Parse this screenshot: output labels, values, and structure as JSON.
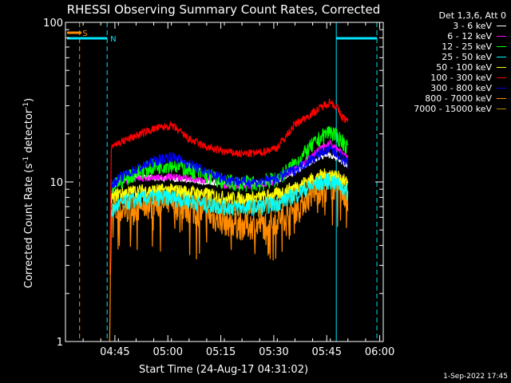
{
  "chart_data": {
    "type": "line",
    "title": "RHESSI Observing Summary Count Rates, Corrected",
    "xlabel": "Start Time (24-Aug-17 04:31:02)",
    "ylabel_main": "Corrected Count Rate (s",
    "ylabel_sup1": "-1",
    "ylabel_mid": " detector",
    "ylabel_sup2": "-1",
    "ylabel_end": ")",
    "yscale": "log",
    "ylim": [
      1,
      100
    ],
    "x_range_minutes": [
      0,
      90
    ],
    "x_ticks": [
      {
        "minute": 14,
        "label": "04:45"
      },
      {
        "minute": 29,
        "label": "05:00"
      },
      {
        "minute": 44,
        "label": "05:15"
      },
      {
        "minute": 59,
        "label": "05:30"
      },
      {
        "minute": 74,
        "label": "05:45"
      },
      {
        "minute": 89,
        "label": "06:00"
      }
    ],
    "y_ticks": [
      {
        "value": 1,
        "label": "1"
      },
      {
        "value": 10,
        "label": "10"
      },
      {
        "value": 100,
        "label": "100"
      }
    ],
    "legend_title": "Det 1,3,6, Att 0",
    "markers": {
      "s_label": "S",
      "n_label": "N",
      "s_color": "#ff8c00",
      "n_color": "#00e5ff"
    },
    "series": [
      {
        "name": "3 - 6 keV",
        "color": "#ffffff",
        "x": [
          13,
          15,
          20,
          25,
          30,
          35,
          40,
          45,
          50,
          55,
          60,
          65,
          70,
          73,
          75,
          76,
          77,
          78,
          80
        ],
        "y": [
          9.5,
          10.5,
          10.8,
          10.6,
          10.5,
          10.2,
          10.0,
          9.8,
          9.8,
          9.9,
          10.3,
          11.5,
          13.5,
          14.5,
          14.8,
          14.2,
          14.0,
          13.5,
          12.5
        ]
      },
      {
        "name": "6 - 12 keV",
        "color": "#ff00ff",
        "x": [
          13,
          15,
          20,
          25,
          30,
          35,
          40,
          43,
          45,
          50,
          55,
          60,
          65,
          70,
          73,
          75,
          76,
          77,
          78,
          80
        ],
        "y": [
          9.0,
          10.0,
          10.5,
          10.6,
          10.8,
          10.5,
          10.2,
          11.0,
          9.5,
          9.5,
          9.6,
          10.2,
          12.0,
          15.0,
          16.5,
          17.5,
          16.5,
          16.0,
          15.5,
          14.0
        ]
      },
      {
        "name": "12 - 25 keV",
        "color": "#00ff00",
        "x": [
          13,
          15,
          20,
          25,
          30,
          35,
          40,
          45,
          50,
          55,
          60,
          65,
          70,
          73,
          75,
          76,
          77,
          78,
          80
        ],
        "y": [
          9.0,
          10.0,
          11.5,
          12.5,
          13.0,
          12.0,
          11.0,
          10.0,
          9.8,
          9.8,
          10.5,
          13.0,
          17.0,
          19.5,
          21.0,
          20.0,
          19.0,
          18.5,
          16.5
        ]
      },
      {
        "name": "25 - 50 keV",
        "color": "#00ffff",
        "x": [
          13,
          15,
          20,
          25,
          30,
          35,
          40,
          45,
          50,
          55,
          60,
          65,
          70,
          73,
          75,
          76,
          77,
          78,
          80
        ],
        "y": [
          6.5,
          7.2,
          7.8,
          8.0,
          8.0,
          7.6,
          7.2,
          7.0,
          6.9,
          7.0,
          7.4,
          8.3,
          9.5,
          10.0,
          10.2,
          10.0,
          9.8,
          9.5,
          8.5
        ]
      },
      {
        "name": "50 - 100 keV",
        "color": "#ffff00",
        "x": [
          13,
          15,
          20,
          25,
          30,
          35,
          40,
          45,
          50,
          55,
          60,
          65,
          70,
          73,
          75,
          76,
          77,
          78,
          80
        ],
        "y": [
          8.0,
          8.5,
          8.8,
          8.9,
          8.9,
          8.7,
          8.4,
          8.0,
          7.9,
          8.0,
          8.4,
          9.3,
          10.5,
          11.0,
          11.2,
          11.0,
          10.8,
          10.5,
          9.8
        ]
      },
      {
        "name": "100 - 300 keV",
        "color": "#ff0000",
        "x": [
          12.5,
          13,
          15,
          20,
          25,
          30,
          32,
          35,
          40,
          45,
          50,
          55,
          60,
          63,
          65,
          70,
          73,
          75,
          76,
          77,
          78,
          80
        ],
        "y": [
          2.5,
          17.0,
          17.5,
          19.5,
          21.5,
          22.5,
          21.0,
          18.5,
          16.5,
          15.5,
          15.0,
          15.2,
          16.5,
          20.0,
          23.0,
          27.0,
          30.0,
          32.0,
          30.5,
          29.0,
          26.0,
          24.0
        ]
      },
      {
        "name": "300 - 800 keV",
        "color": "#0000ff",
        "x": [
          13,
          15,
          20,
          25,
          30,
          35,
          40,
          45,
          50,
          55,
          60,
          65,
          70,
          73,
          75,
          76,
          77,
          78,
          80
        ],
        "y": [
          9.5,
          10.5,
          12.0,
          13.5,
          14.5,
          13.0,
          11.5,
          10.5,
          10.0,
          10.0,
          10.5,
          12.0,
          14.0,
          15.5,
          16.0,
          15.5,
          15.0,
          14.5,
          13.0
        ]
      },
      {
        "name": "800 - 7000 keV",
        "color": "#ff8c00",
        "x": [
          12.5,
          13,
          15,
          20,
          25,
          30,
          35,
          40,
          45,
          50,
          55,
          60,
          65,
          70,
          73,
          75,
          76,
          77,
          78,
          80
        ],
        "y": [
          1.0,
          6.3,
          6.5,
          7.0,
          7.3,
          7.3,
          6.8,
          6.2,
          5.7,
          5.4,
          5.4,
          5.8,
          6.8,
          8.5,
          9.3,
          9.8,
          9.5,
          9.2,
          8.8,
          8.0
        ]
      },
      {
        "name": "7000 - 15000 keV",
        "color": "#b8860b",
        "x": [
          13,
          15,
          20,
          25,
          30,
          35,
          40,
          45,
          50,
          55,
          60,
          65,
          70,
          73,
          75,
          76,
          77,
          78,
          80
        ],
        "y": [
          7.0,
          7.5,
          8.0,
          8.2,
          8.3,
          8.0,
          7.6,
          7.2,
          7.0,
          7.1,
          7.5,
          8.5,
          9.8,
          10.3,
          10.5,
          10.3,
          10.0,
          9.8,
          9.0
        ]
      }
    ]
  },
  "footer": {
    "timestamp": "1-Sep-2022 17:45"
  }
}
